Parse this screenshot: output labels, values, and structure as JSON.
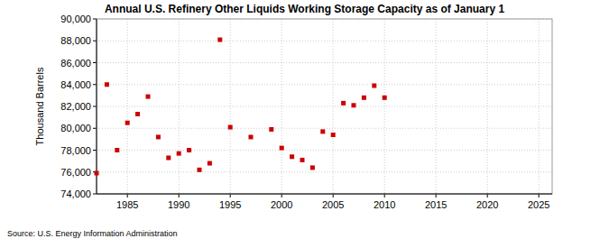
{
  "chart_data": {
    "type": "scatter",
    "title": "Annual U.S. Refinery Other Liquids Working Storage Capacity as of January 1",
    "y_label": "Thousand Barrels",
    "source": "Source: U.S. Energy Information Administration",
    "x": [
      1982,
      1983,
      1984,
      1985,
      1986,
      1987,
      1988,
      1989,
      1990,
      1991,
      1992,
      1993,
      1994,
      1995,
      1997,
      1999,
      2000,
      2001,
      2002,
      2003,
      2004,
      2005,
      2006,
      2007,
      2008,
      2009,
      2010
    ],
    "values": [
      75900,
      84000,
      78000,
      80500,
      81300,
      82900,
      79200,
      77300,
      77700,
      78000,
      76200,
      76800,
      88100,
      80100,
      79200,
      79900,
      78200,
      77400,
      77100,
      76400,
      79700,
      79400,
      82300,
      82100,
      82800,
      83900,
      82800
    ],
    "color": "#cc0000",
    "marker": "square",
    "xlim": [
      1982,
      2026.3
    ],
    "xticks": [
      1985,
      1990,
      1995,
      2000,
      2005,
      2010,
      2015,
      2020,
      2025
    ],
    "ylim": [
      74000,
      90000
    ],
    "yticks": [
      {
        "value": 74000,
        "label": "74,000"
      },
      {
        "value": 76000,
        "label": "76,000"
      },
      {
        "value": 78000,
        "label": "78,000"
      },
      {
        "value": 80000,
        "label": "80,000"
      },
      {
        "value": 82000,
        "label": "82,000"
      },
      {
        "value": 84000,
        "label": "84,000"
      },
      {
        "value": 86000,
        "label": "86,000"
      },
      {
        "value": 88000,
        "label": "88,000"
      },
      {
        "value": 90000,
        "label": "90,000"
      }
    ],
    "grid": true
  }
}
